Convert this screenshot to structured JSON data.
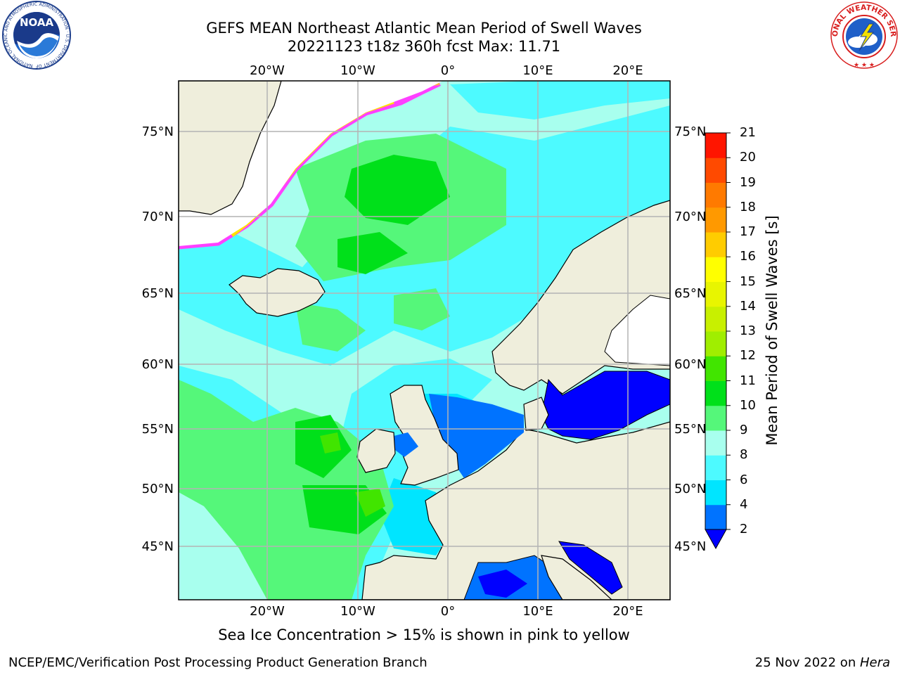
{
  "title": {
    "line1": "GEFS MEAN Northeast Atlantic Mean Period of Swell Waves",
    "line2": "20221123 t18z 360h fcst   Max: 11.71"
  },
  "axes": {
    "lon_ticks": [
      "20°W",
      "10°W",
      "0°",
      "10°E",
      "20°E"
    ],
    "lat_ticks": [
      "75°N",
      "70°N",
      "65°N",
      "60°N",
      "55°N",
      "50°N",
      "45°N"
    ]
  },
  "colorbar": {
    "title": "Mean Period of Swell Waves [s]",
    "levels": [
      2,
      4,
      6,
      8,
      9,
      10,
      11,
      12,
      13,
      14,
      15,
      16,
      17,
      18,
      19,
      20,
      21
    ],
    "labels": [
      "2",
      "4",
      "6",
      "8",
      "9",
      "10",
      "11",
      "12",
      "13",
      "14",
      "15",
      "16",
      "17",
      "18",
      "19",
      "20",
      "21"
    ],
    "colors": [
      "#0073ff",
      "#00e5ff",
      "#4dfaff",
      "#a8ffee",
      "#55f77a",
      "#00e01a",
      "#41e500",
      "#a0ee00",
      "#c8f000",
      "#e8f500",
      "#ffff00",
      "#ffcc00",
      "#ff9900",
      "#ff7a00",
      "#ff4a00",
      "#ff1500"
    ],
    "under_color": "#0000ff"
  },
  "colors": {
    "land": "#efeedc",
    "sea_ice_zero": "#ffffff",
    "grid": "#b4b4b4",
    "ice_pink": "#ff40ff",
    "ice_yellow": "#ffe100"
  },
  "logos": {
    "noaa_text": "NOAA",
    "noaa_ring": "NATIONAL OCEANIC AND ATMOSPHERIC ADMINISTRATION · U.S. DEPARTMENT OF COMMERCE",
    "nws_ring": "NATIONAL WEATHER SERVICE"
  },
  "footnote": "Sea Ice Concentration > 15% is shown in pink to yellow",
  "footer": {
    "left": "NCEP/EMC/Verification Post Processing Product Generation Branch",
    "right_prefix": "25 Nov 2022 on ",
    "right_host": "Hera"
  }
}
